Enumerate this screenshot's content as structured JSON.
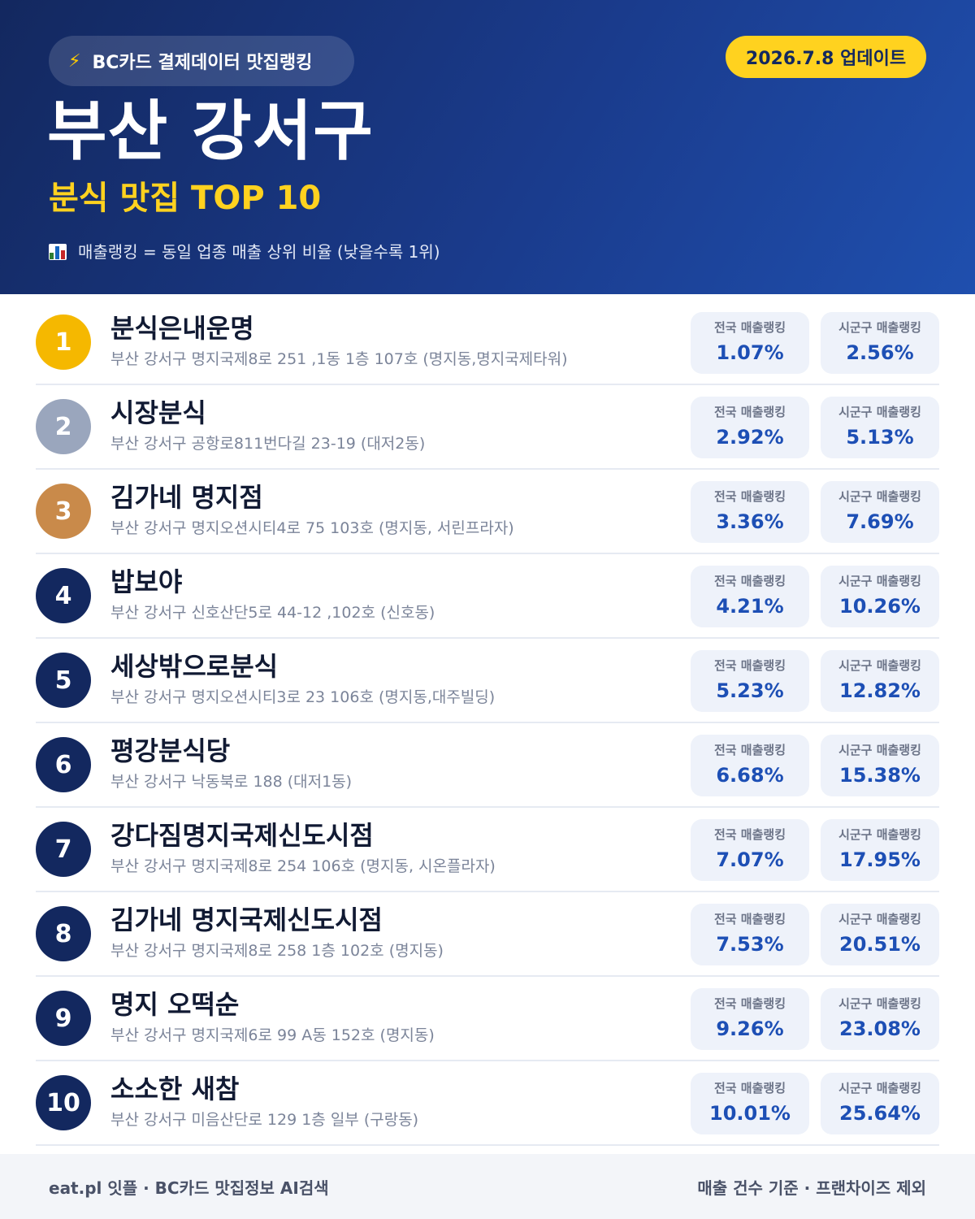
{
  "header": {
    "badge_icon": "lightning-icon",
    "badge_text": "BC카드 결제데이터 맛집랭킹",
    "update": "2026.7.8 업데이트",
    "title": "부산 강서구",
    "subtitle": "분식 맛집 TOP 10",
    "note_icon": "bar-chart-icon",
    "note": "매출랭킹 = 동일 업종 매출 상위 비율 (낮을수록 1위)"
  },
  "labels": {
    "national": "전국 매출랭킹",
    "local": "시군구 매출랭킹"
  },
  "colors": {
    "header_dark": "#13285f",
    "accent_yellow": "#ffd21f",
    "gold": "#f5b800",
    "silver": "#9aa6bd",
    "bronze": "#c98a4a",
    "value_blue": "#1d4fb5"
  },
  "items": [
    {
      "rank": "1",
      "name": "분식은내운명",
      "address": "부산 강서구 명지국제8로 251 ,1동 1층 107호 (명지동,명지국제타워)",
      "national": "1.07%",
      "local": "2.56%"
    },
    {
      "rank": "2",
      "name": "시장분식",
      "address": "부산 강서구 공항로811번다길 23-19 (대저2동)",
      "national": "2.92%",
      "local": "5.13%"
    },
    {
      "rank": "3",
      "name": "김가네 명지점",
      "address": "부산 강서구 명지오션시티4로 75 103호 (명지동, 서린프라자)",
      "national": "3.36%",
      "local": "7.69%"
    },
    {
      "rank": "4",
      "name": "밥보야",
      "address": "부산 강서구 신호산단5로 44-12 ,102호 (신호동)",
      "national": "4.21%",
      "local": "10.26%"
    },
    {
      "rank": "5",
      "name": "세상밖으로분식",
      "address": "부산 강서구 명지오션시티3로 23 106호 (명지동,대주빌딩)",
      "national": "5.23%",
      "local": "12.82%"
    },
    {
      "rank": "6",
      "name": "평강분식당",
      "address": "부산 강서구 낙동북로 188 (대저1동)",
      "national": "6.68%",
      "local": "15.38%"
    },
    {
      "rank": "7",
      "name": "강다짐명지국제신도시점",
      "address": "부산 강서구 명지국제8로 254 106호 (명지동, 시온플라자)",
      "national": "7.07%",
      "local": "17.95%"
    },
    {
      "rank": "8",
      "name": "김가네 명지국제신도시점",
      "address": "부산 강서구 명지국제8로 258 1층 102호 (명지동)",
      "national": "7.53%",
      "local": "20.51%"
    },
    {
      "rank": "9",
      "name": "명지 오떡순",
      "address": "부산 강서구 명지국제6로 99 A동 152호 (명지동)",
      "national": "9.26%",
      "local": "23.08%"
    },
    {
      "rank": "10",
      "name": "소소한 새참",
      "address": "부산 강서구 미음산단로 129 1층 일부 (구랑동)",
      "national": "10.01%",
      "local": "25.64%"
    }
  ],
  "footer": {
    "left": "eat.pl 잇플 · BC카드 맛집정보 AI검색",
    "right": "매출 건수 기준 · 프랜차이즈 제외"
  }
}
